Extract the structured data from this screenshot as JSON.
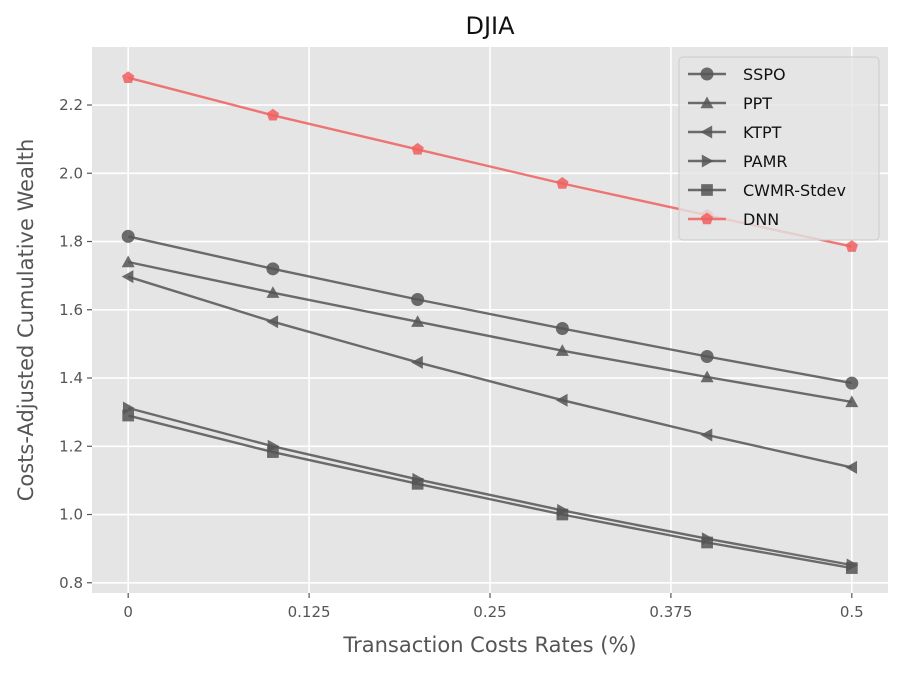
{
  "chart_data": {
    "type": "line",
    "title": "DJIA",
    "xlabel": "Transaction Costs Rates (%)",
    "ylabel": "Costs-Adjusted Cumulative Wealth",
    "x": [
      0,
      0.1,
      0.2,
      0.3,
      0.4,
      0.5
    ],
    "xticks": [
      0,
      0.125,
      0.25,
      0.375,
      0.5
    ],
    "xtick_labels": [
      "0",
      "0.125",
      "0.25",
      "0.375",
      "0.5"
    ],
    "xlim": [
      -0.025,
      0.525
    ],
    "yticks": [
      0.8,
      1.0,
      1.2,
      1.4,
      1.6,
      1.8,
      2.0,
      2.2
    ],
    "ytick_labels": [
      "0.8",
      "1.0",
      "1.2",
      "1.4",
      "1.6",
      "1.8",
      "2.0",
      "2.2"
    ],
    "ylim": [
      0.77,
      2.37
    ],
    "grid": true,
    "style": "ggplot",
    "legend_position": "upper right",
    "series": [
      {
        "name": "SSPO",
        "marker": "circle",
        "color": "#555555",
        "values": [
          1.815,
          1.72,
          1.63,
          1.545,
          1.463,
          1.385
        ]
      },
      {
        "name": "PPT",
        "marker": "triangle-up",
        "color": "#555555",
        "values": [
          1.74,
          1.65,
          1.565,
          1.48,
          1.403,
          1.33
        ]
      },
      {
        "name": "KTPT",
        "marker": "triangle-left",
        "color": "#555555",
        "values": [
          1.697,
          1.565,
          1.446,
          1.335,
          1.233,
          1.138
        ]
      },
      {
        "name": "PAMR",
        "marker": "triangle-right",
        "color": "#555555",
        "values": [
          1.312,
          1.2,
          1.103,
          1.012,
          0.929,
          0.852
        ]
      },
      {
        "name": "CWMR-Stdev",
        "marker": "square",
        "color": "#555555",
        "values": [
          1.29,
          1.183,
          1.09,
          1.0,
          0.918,
          0.843
        ]
      },
      {
        "name": "DNN",
        "marker": "pentagon",
        "color": "#f06060",
        "values": [
          2.28,
          2.17,
          2.07,
          1.97,
          1.877,
          1.785
        ]
      }
    ]
  }
}
